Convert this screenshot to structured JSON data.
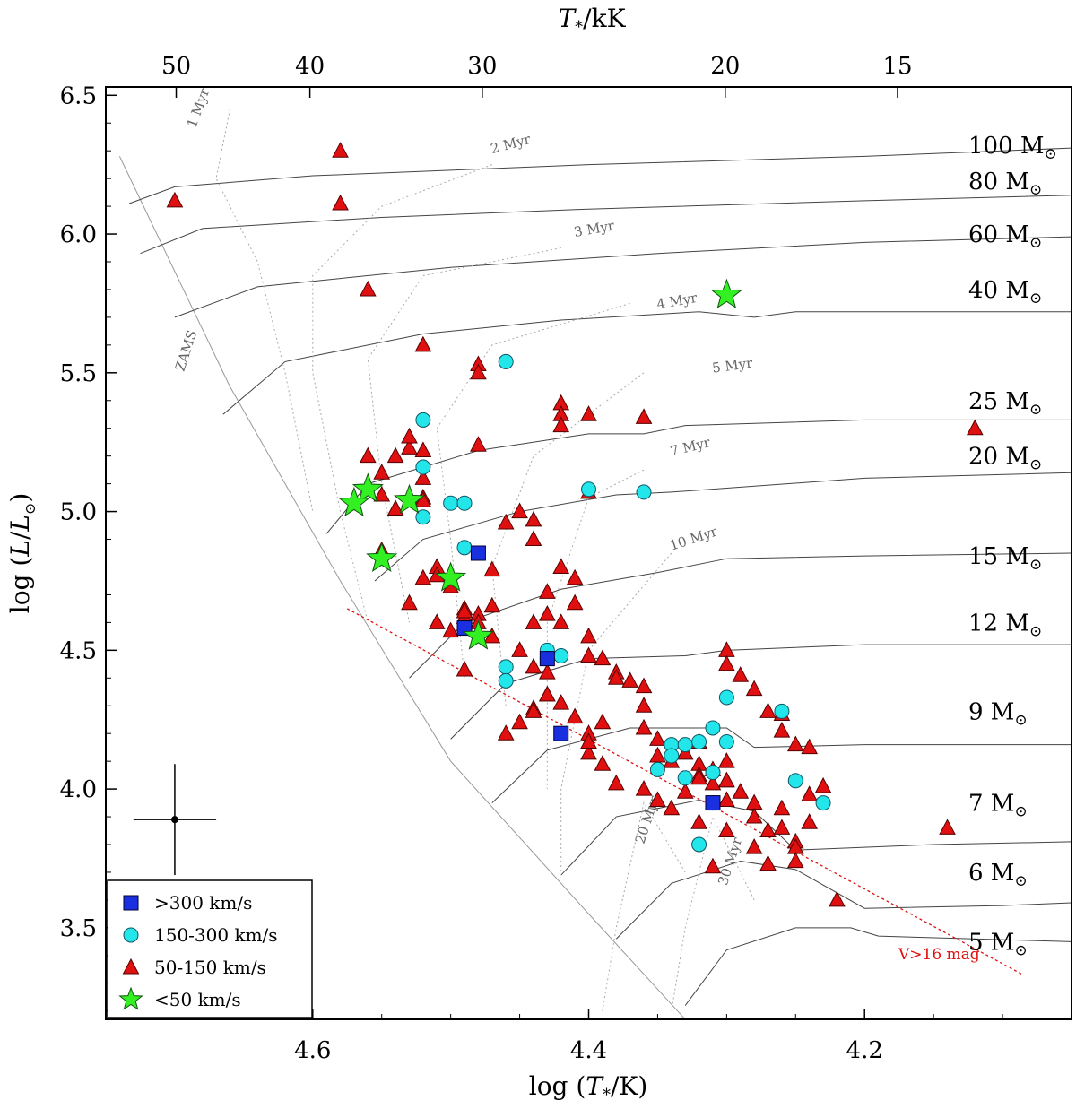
{
  "chart_data": {
    "type": "scatter",
    "title": "",
    "xlabel": "log (T*/K)",
    "ylabel": "log (L/L⊙)",
    "top_xlabel": "T*/kK",
    "xlim": [
      4.75,
      4.05
    ],
    "ylim": [
      3.17,
      6.53
    ],
    "x_ticks": [
      4.6,
      4.4,
      4.2
    ],
    "x_tick_labels": [
      "4.6",
      "4.4",
      "4.2"
    ],
    "y_ticks": [
      3.5,
      4.0,
      4.5,
      5.0,
      5.5,
      6.0,
      6.5
    ],
    "y_tick_labels": [
      "3.5",
      "4.0",
      "4.5",
      "5.0",
      "5.5",
      "6.0",
      "6.5"
    ],
    "top_ticks_kK": [
      50,
      40,
      30,
      20,
      15
    ],
    "top_tick_labels": [
      "50",
      "40",
      "30",
      "20",
      "15"
    ],
    "track_labels": [
      {
        "label": "100 M",
        "logL": 6.32
      },
      {
        "label": "80 M",
        "logL": 6.19
      },
      {
        "label": "60 M",
        "logL": 6.0
      },
      {
        "label": "40 M",
        "logL": 5.8
      },
      {
        "label": "25 M",
        "logL": 5.4
      },
      {
        "label": "20 M",
        "logL": 5.2
      },
      {
        "label": "15 M",
        "logL": 4.84
      },
      {
        "label": "12 M",
        "logL": 4.6
      },
      {
        "label": "9 M",
        "logL": 4.28
      },
      {
        "label": "7 M",
        "logL": 3.95
      },
      {
        "label": "6 M",
        "logL": 3.7
      },
      {
        "label": "5 M",
        "logL": 3.45
      }
    ],
    "isochrone_labels": [
      "1 Myr",
      "2 Myr",
      "3 Myr",
      "4 Myr",
      "5 Myr",
      "7 Myr",
      "10 Myr",
      "20 Myr",
      "30 Myr"
    ],
    "zams_label": "ZAMS",
    "limit_label": "V>16 mag",
    "error_bar": {
      "x": 4.7,
      "y": 3.89,
      "dx": 0.03,
      "dy": 0.2
    },
    "legend": [
      {
        "label": ">300 km/s",
        "marker": "square",
        "color": "#1a2fe0"
      },
      {
        "label": "150-300 km/s",
        "marker": "circle",
        "color": "#22e6ea"
      },
      {
        "label": "50-150 km/s",
        "marker": "triangle",
        "color": "#e01010"
      },
      {
        "label": "<50 km/s",
        "marker": "star",
        "color": "#33f023"
      }
    ],
    "series": [
      {
        "name": ">300 km/s",
        "marker": "square",
        "color": "#1a2fe0",
        "x": [
          4.48,
          4.49,
          4.43,
          4.42,
          4.31
        ],
        "y": [
          4.85,
          4.58,
          4.47,
          4.2,
          3.95
        ]
      },
      {
        "name": "150-300 km/s",
        "marker": "circle",
        "color": "#22e6ea",
        "x": [
          4.46,
          4.52,
          4.52,
          4.52,
          4.5,
          4.49,
          4.49,
          4.4,
          4.36,
          4.43,
          4.43,
          4.42,
          4.46,
          4.46,
          4.35,
          4.34,
          4.34,
          4.33,
          4.33,
          4.32,
          4.31,
          4.3,
          4.3,
          4.31,
          4.31,
          4.26,
          4.25,
          4.23,
          4.32
        ],
        "y": [
          5.54,
          5.33,
          5.16,
          4.98,
          5.03,
          5.03,
          4.87,
          5.08,
          5.07,
          4.5,
          4.47,
          4.48,
          4.44,
          4.39,
          4.07,
          4.16,
          4.12,
          4.16,
          4.04,
          4.17,
          4.22,
          4.33,
          4.17,
          4.06,
          3.95,
          4.28,
          4.03,
          3.95,
          3.8
        ]
      },
      {
        "name": "50-150 km/s",
        "marker": "triangle",
        "color": "#e01010",
        "x": [
          4.7,
          4.58,
          4.58,
          4.56,
          4.52,
          4.48,
          4.48,
          4.48,
          4.42,
          4.42,
          4.42,
          4.4,
          4.36,
          4.4,
          4.12,
          4.56,
          4.55,
          4.54,
          4.53,
          4.53,
          4.52,
          4.52,
          4.52,
          4.53,
          4.52,
          4.54,
          4.55,
          4.55,
          4.51,
          4.52,
          4.51,
          4.5,
          4.49,
          4.49,
          4.48,
          4.48,
          4.47,
          4.47,
          4.46,
          4.45,
          4.44,
          4.44,
          4.43,
          4.43,
          4.42,
          4.42,
          4.41,
          4.41,
          4.4,
          4.4,
          4.39,
          4.38,
          4.38,
          4.37,
          4.36,
          4.36,
          4.36,
          4.35,
          4.34,
          4.33,
          4.32,
          4.32,
          4.31,
          4.31,
          4.3,
          4.3,
          4.3,
          4.3,
          4.29,
          4.28,
          4.28,
          4.28,
          4.27,
          4.27,
          4.26,
          4.26,
          4.25,
          4.25,
          4.25,
          4.24,
          4.24,
          4.23,
          4.22,
          4.14,
          4.44,
          4.45,
          4.44,
          4.43,
          4.43,
          4.42,
          4.41,
          4.4,
          4.4,
          4.39,
          4.38,
          4.36,
          4.35,
          4.34,
          4.33,
          4.32,
          4.32,
          4.31,
          4.3,
          4.3,
          4.29,
          4.28,
          4.27,
          4.26,
          4.25,
          4.24,
          4.26,
          4.3,
          4.32,
          4.35,
          4.4,
          4.39,
          4.43,
          4.44,
          4.44,
          4.45,
          4.46,
          4.47,
          4.49,
          4.49,
          4.5,
          4.51,
          4.53
        ],
        "y": [
          6.12,
          6.3,
          6.11,
          5.8,
          5.6,
          5.53,
          5.5,
          5.24,
          5.39,
          5.35,
          5.31,
          5.35,
          5.34,
          5.07,
          5.3,
          5.2,
          5.14,
          5.2,
          5.23,
          5.27,
          5.22,
          5.12,
          5.05,
          5.04,
          5.04,
          5.01,
          5.06,
          4.86,
          4.8,
          4.76,
          4.77,
          4.73,
          4.65,
          4.62,
          4.63,
          4.6,
          4.66,
          4.79,
          4.96,
          5.0,
          4.97,
          4.9,
          4.71,
          4.63,
          4.6,
          4.8,
          4.76,
          4.67,
          4.55,
          4.48,
          4.47,
          4.42,
          4.4,
          4.39,
          4.37,
          4.3,
          4.22,
          4.18,
          4.1,
          4.13,
          4.17,
          4.09,
          4.07,
          4.02,
          4.1,
          4.03,
          3.96,
          3.85,
          3.99,
          3.95,
          3.9,
          3.79,
          3.85,
          3.73,
          3.93,
          3.86,
          3.81,
          3.79,
          3.74,
          3.98,
          3.88,
          4.01,
          3.6,
          3.86,
          4.6,
          4.5,
          4.44,
          4.42,
          4.34,
          4.31,
          4.26,
          4.2,
          4.13,
          4.09,
          4.02,
          4.0,
          3.96,
          3.93,
          3.99,
          4.05,
          3.88,
          3.72,
          4.5,
          4.45,
          4.41,
          4.36,
          4.28,
          4.21,
          4.16,
          4.15,
          4.27,
          4.03,
          4.04,
          4.12,
          4.17,
          4.24,
          4.34,
          4.29,
          4.28,
          4.24,
          4.2,
          4.55,
          4.43,
          4.64,
          4.57,
          4.6,
          4.67
        ]
      },
      {
        "name": "<50 km/s",
        "marker": "star",
        "color": "#33f023",
        "x": [
          4.3,
          4.56,
          4.57,
          4.53,
          4.55,
          4.5,
          4.48
        ],
        "y": [
          5.78,
          5.08,
          5.03,
          5.04,
          4.83,
          4.76,
          4.55
        ]
      }
    ]
  }
}
